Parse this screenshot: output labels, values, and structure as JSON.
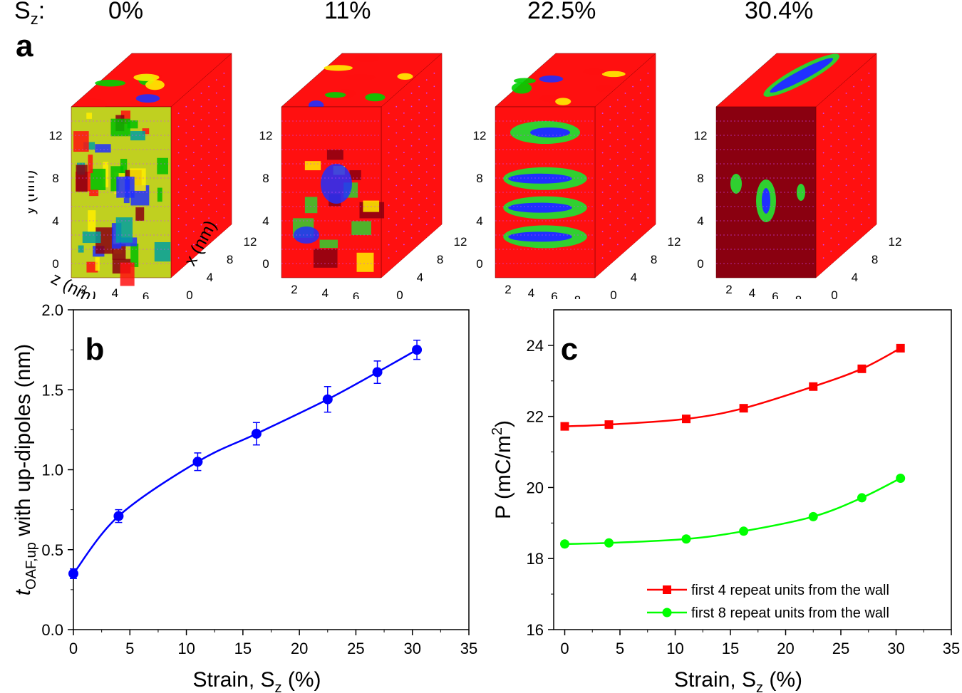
{
  "strain_row": {
    "label_main": "S",
    "label_sub": "z",
    "label_tail": ":",
    "values": [
      "0%",
      "11%",
      "22.5%",
      "30.4%"
    ]
  },
  "panels": {
    "a": "a",
    "b": "b",
    "c": "c"
  },
  "cubes": [
    {
      "y_label": "y (nm)",
      "x_label": "x (nm)",
      "z_label": "z (nm)",
      "y_ticks": [
        "0",
        "4",
        "8",
        "12"
      ],
      "x_ticks": [
        "0",
        "4",
        "8",
        "12"
      ],
      "z_ticks": [
        "2",
        "4",
        "6"
      ],
      "up_fraction": 0.0
    },
    {
      "y_ticks": [
        "0",
        "4",
        "8",
        "12"
      ],
      "x_ticks": [
        "0",
        "4",
        "8",
        "12"
      ],
      "z_ticks": [
        "2",
        "4",
        "6"
      ],
      "up_fraction": 0.11
    },
    {
      "y_ticks": [
        "0",
        "4",
        "8",
        "12"
      ],
      "x_ticks": [
        "0",
        "4",
        "8",
        "12"
      ],
      "z_ticks": [
        "2",
        "4",
        "6",
        "8"
      ],
      "up_fraction": 0.225
    },
    {
      "y_ticks": [
        "0",
        "4",
        "8",
        "12"
      ],
      "x_ticks": [
        "0",
        "4",
        "8",
        "12"
      ],
      "z_ticks": [
        "2",
        "4",
        "6",
        "8"
      ],
      "up_fraction": 0.304
    }
  ],
  "colors": {
    "red": "#ff0000",
    "green": "#00e000",
    "blue": "#0000ff",
    "purple": "#cc44ff"
  },
  "chart_data": [
    {
      "type": "scatter",
      "panel": "b",
      "xlabel_main": "Strain, S",
      "xlabel_sub": "z",
      "xlabel_tail": " (%)",
      "ylabel_italic": "t",
      "ylabel_sub": "OAF,up",
      "ylabel_tail": " with up-dipoles (nm)",
      "xlim": [
        0,
        35
      ],
      "ylim": [
        0,
        2.0
      ],
      "x_ticks": [
        0,
        5,
        10,
        15,
        20,
        25,
        30,
        35
      ],
      "y_ticks": [
        0.0,
        0.5,
        1.0,
        1.5,
        2.0
      ],
      "y_tick_labels": [
        "0.0",
        "0.5",
        "1.0",
        "1.5",
        "2.0"
      ],
      "x": [
        0,
        4,
        11,
        16.2,
        22.5,
        26.9,
        30.4
      ],
      "y": [
        0.35,
        0.71,
        1.05,
        1.225,
        1.44,
        1.61,
        1.75
      ],
      "error": [
        0.03,
        0.04,
        0.055,
        0.07,
        0.08,
        0.07,
        0.06
      ],
      "color": "#0000ff",
      "fit": true
    },
    {
      "type": "line",
      "panel": "c",
      "xlabel_main": "Strain, S",
      "xlabel_sub": "z",
      "xlabel_tail": " (%)",
      "ylabel_main": "P (mC/m",
      "ylabel_sup": "2",
      "ylabel_tail": ")",
      "xlim": [
        -1,
        35
      ],
      "ylim": [
        16,
        25
      ],
      "x_ticks": [
        0,
        5,
        10,
        15,
        20,
        25,
        30,
        35
      ],
      "y_ticks": [
        16,
        18,
        20,
        22,
        24
      ],
      "legend_placement": "bottom-right",
      "series": [
        {
          "name": "first 4 repeat units from the wall",
          "marker": "square",
          "color": "#ff0000",
          "x": [
            0,
            4,
            11,
            16.2,
            22.5,
            26.9,
            30.4
          ],
          "y": [
            21.72,
            21.77,
            21.93,
            22.23,
            22.84,
            23.34,
            23.92
          ]
        },
        {
          "name": "first 8 repeat units from the wall",
          "marker": "circle",
          "color": "#00ff00",
          "x": [
            0,
            4,
            11,
            16.2,
            22.5,
            26.9,
            30.4
          ],
          "y": [
            18.41,
            18.44,
            18.55,
            18.77,
            19.18,
            19.71,
            20.26
          ]
        }
      ]
    }
  ]
}
